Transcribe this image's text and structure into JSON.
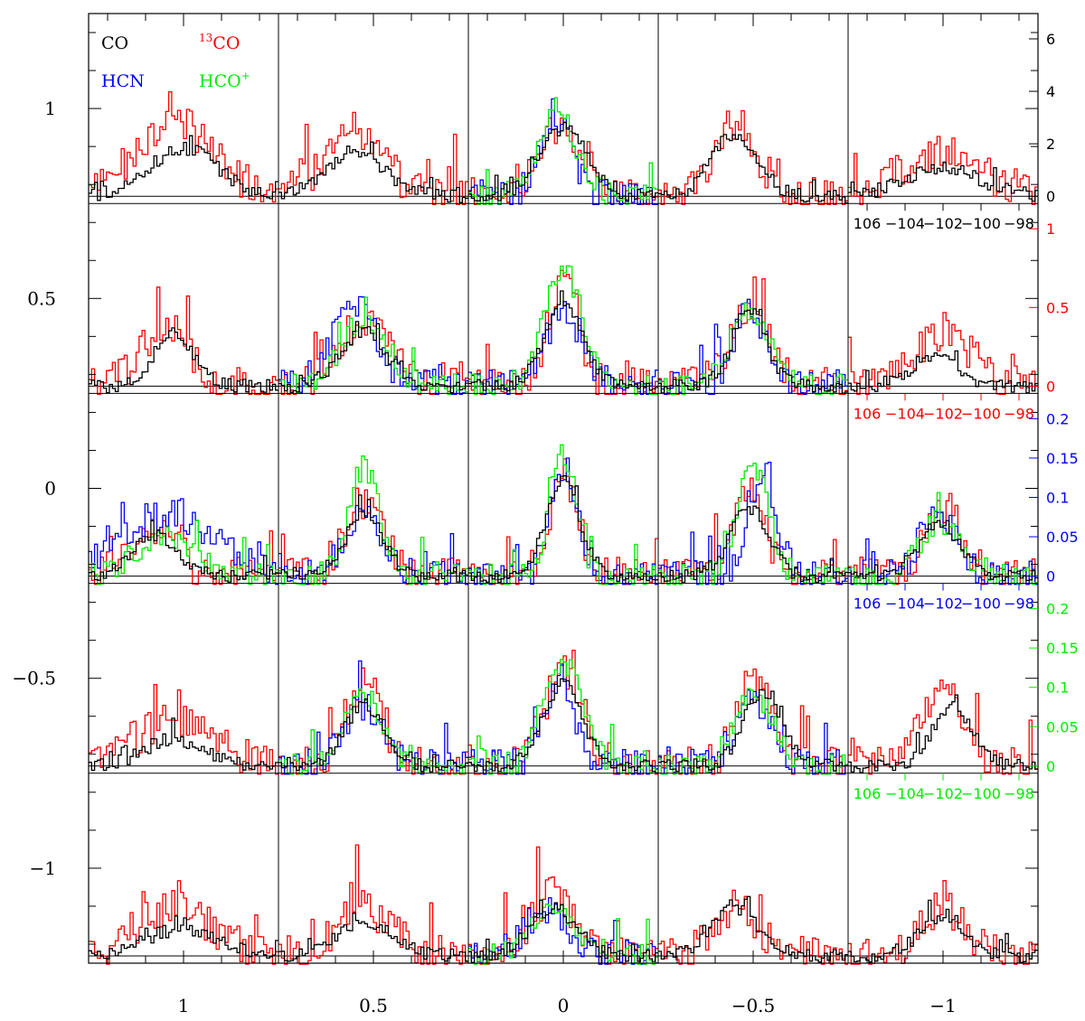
{
  "chart_data": {
    "type": "line",
    "subtype": "spectral line grid map (5x5 panels of step spectra)",
    "grid": {
      "rows": 5,
      "cols": 5
    },
    "x_axis": {
      "label": "",
      "ticks": [
        1,
        0.5,
        0,
        -0.5,
        -1
      ],
      "tick_labels": [
        "1",
        "0.5",
        "0",
        "−0.5",
        "−1"
      ],
      "range": [
        1.25,
        -1.25
      ]
    },
    "y_axis": {
      "label": "",
      "ticks": [
        1,
        0.5,
        0,
        -0.5,
        -1
      ],
      "tick_labels": [
        "1",
        "0.5",
        "0",
        "−0.5",
        "−1"
      ],
      "range": [
        -1.25,
        1.25
      ]
    },
    "panel_velocity_axis": {
      "range": [
        -107.5,
        -97.5
      ],
      "ticks": [
        -106,
        -104,
        -102,
        -100,
        -98
      ]
    },
    "legend": [
      {
        "text": "CO",
        "color": "#000000"
      },
      {
        "text": "¹³CO",
        "sup": "13",
        "base": "CO",
        "color": "#ff0000"
      },
      {
        "text": "HCN",
        "color": "#0000ff"
      },
      {
        "text": "HCO⁺",
        "base": "HCO",
        "sup": "+",
        "color": "#00ee00"
      }
    ],
    "intensity_scales": [
      {
        "series": "CO",
        "color": "#000000",
        "ticks": [
          "6",
          "4",
          "2",
          "0"
        ],
        "values": [
          6,
          4,
          2,
          0
        ],
        "velocity_labels": [
          "106",
          "−104",
          "−102",
          "−100",
          "−98"
        ]
      },
      {
        "series": "13CO",
        "color": "#ff0000",
        "ticks": [
          "1",
          "0.5",
          "0"
        ],
        "values": [
          1,
          0.5,
          0
        ],
        "velocity_labels": [
          "106",
          "−104",
          "−102",
          "−100",
          "−98"
        ]
      },
      {
        "series": "HCN",
        "color": "#0000ff",
        "ticks": [
          "0.2",
          "0.15",
          "0.1",
          "0.05",
          "0"
        ],
        "values": [
          0.2,
          0.15,
          0.1,
          0.05,
          0
        ],
        "velocity_labels": [
          "106",
          "−104",
          "−102",
          "−100",
          "−98"
        ]
      },
      {
        "series": "HCO+",
        "color": "#00ee00",
        "ticks": [
          "0.2",
          "0.15",
          "0.1",
          "0.05",
          "0"
        ],
        "values": [
          0.2,
          0.15,
          0.1,
          0.05,
          0
        ],
        "velocity_labels": [
          "106",
          "−104",
          "−102",
          "−100",
          "−98"
        ]
      }
    ],
    "series": [
      {
        "name": "CO",
        "color": "#000000",
        "peak_velocity_approx": -102
      },
      {
        "name": "13CO",
        "color": "#ff0000",
        "peak_velocity_approx": -102
      },
      {
        "name": "HCN",
        "color": "#0000ff",
        "peak_velocity_approx": -102
      },
      {
        "name": "HCO+",
        "color": "#00ee00",
        "peak_velocity_approx": -102
      }
    ],
    "panels": [
      {
        "row": 0,
        "col": 0,
        "spectra": {
          "CO": {
            "peak": 0.35,
            "center": 0.5,
            "width": 0.18
          },
          "13CO": {
            "peak": 0.55,
            "center": 0.45,
            "width": 0.2
          }
        }
      },
      {
        "row": 0,
        "col": 1,
        "spectra": {
          "CO": {
            "peak": 0.3,
            "center": 0.4,
            "width": 0.16
          },
          "13CO": {
            "peak": 0.5,
            "center": 0.4,
            "width": 0.15
          }
        }
      },
      {
        "row": 0,
        "col": 2,
        "spectra": {
          "CO": {
            "peak": 0.5,
            "center": 0.5,
            "width": 0.12
          },
          "13CO": {
            "peak": 0.5,
            "center": 0.5,
            "width": 0.12
          },
          "HCN": {
            "peak": 0.6,
            "center": 0.45,
            "width": 0.08
          },
          "HCO+": {
            "peak": 0.6,
            "center": 0.47,
            "width": 0.1
          }
        }
      },
      {
        "row": 0,
        "col": 3,
        "spectra": {
          "CO": {
            "peak": 0.45,
            "center": 0.4,
            "width": 0.12
          },
          "13CO": {
            "peak": 0.55,
            "center": 0.4,
            "width": 0.1
          }
        }
      },
      {
        "row": 0,
        "col": 4,
        "spectra": {
          "CO": {
            "peak": 0.2,
            "center": 0.5,
            "width": 0.2
          },
          "13CO": {
            "peak": 0.35,
            "center": 0.5,
            "width": 0.2
          }
        }
      },
      {
        "row": 1,
        "col": 0,
        "spectra": {
          "CO": {
            "peak": 0.4,
            "center": 0.45,
            "width": 0.1
          },
          "13CO": {
            "peak": 0.45,
            "center": 0.4,
            "width": 0.12
          }
        }
      },
      {
        "row": 1,
        "col": 1,
        "spectra": {
          "CO": {
            "peak": 0.4,
            "center": 0.45,
            "width": 0.12
          },
          "13CO": {
            "peak": 0.5,
            "center": 0.45,
            "width": 0.12
          },
          "HCN": {
            "peak": 0.6,
            "center": 0.4,
            "width": 0.12
          },
          "HCO+": {
            "peak": 0.5,
            "center": 0.45,
            "width": 0.12
          }
        }
      },
      {
        "row": 1,
        "col": 2,
        "spectra": {
          "CO": {
            "peak": 0.6,
            "center": 0.5,
            "width": 0.1
          },
          "13CO": {
            "peak": 0.8,
            "center": 0.5,
            "width": 0.08
          },
          "HCN": {
            "peak": 0.55,
            "center": 0.5,
            "width": 0.1
          },
          "HCO+": {
            "peak": 0.85,
            "center": 0.5,
            "width": 0.1
          }
        }
      },
      {
        "row": 1,
        "col": 3,
        "spectra": {
          "CO": {
            "peak": 0.55,
            "center": 0.48,
            "width": 0.09
          },
          "13CO": {
            "peak": 0.55,
            "center": 0.48,
            "width": 0.1
          },
          "HCN": {
            "peak": 0.6,
            "center": 0.48,
            "width": 0.08
          },
          "HCO+": {
            "peak": 0.55,
            "center": 0.48,
            "width": 0.1
          }
        }
      },
      {
        "row": 1,
        "col": 4,
        "spectra": {
          "CO": {
            "peak": 0.22,
            "center": 0.45,
            "width": 0.12
          },
          "13CO": {
            "peak": 0.4,
            "center": 0.5,
            "width": 0.15
          }
        }
      },
      {
        "row": 2,
        "col": 0,
        "spectra": {
          "CO": {
            "peak": 0.3,
            "center": 0.35,
            "width": 0.12
          },
          "13CO": {
            "peak": 0.35,
            "center": 0.35,
            "width": 0.12
          },
          "HCN": {
            "peak": 0.45,
            "center": 0.4,
            "width": 0.25
          },
          "HCO+": {
            "peak": 0.3,
            "center": 0.4,
            "width": 0.15
          }
        }
      },
      {
        "row": 2,
        "col": 1,
        "spectra": {
          "CO": {
            "peak": 0.45,
            "center": 0.45,
            "width": 0.1
          },
          "13CO": {
            "peak": 0.55,
            "center": 0.45,
            "width": 0.1
          },
          "HCN": {
            "peak": 0.5,
            "center": 0.45,
            "width": 0.1
          },
          "HCO+": {
            "peak": 0.8,
            "center": 0.45,
            "width": 0.08
          }
        }
      },
      {
        "row": 2,
        "col": 2,
        "spectra": {
          "CO": {
            "peak": 0.7,
            "center": 0.5,
            "width": 0.09
          },
          "13CO": {
            "peak": 0.7,
            "center": 0.5,
            "width": 0.08
          },
          "HCN": {
            "peak": 0.8,
            "center": 0.5,
            "width": 0.07
          },
          "HCO+": {
            "peak": 0.9,
            "center": 0.5,
            "width": 0.07
          }
        }
      },
      {
        "row": 2,
        "col": 3,
        "spectra": {
          "CO": {
            "peak": 0.5,
            "center": 0.48,
            "width": 0.1
          },
          "13CO": {
            "peak": 0.6,
            "center": 0.48,
            "width": 0.08
          },
          "HCN": {
            "peak": 0.75,
            "center": 0.55,
            "width": 0.07
          },
          "HCO+": {
            "peak": 0.8,
            "center": 0.5,
            "width": 0.08
          }
        }
      },
      {
        "row": 2,
        "col": 4,
        "spectra": {
          "CO": {
            "peak": 0.4,
            "center": 0.48,
            "width": 0.1
          },
          "13CO": {
            "peak": 0.45,
            "center": 0.5,
            "width": 0.1
          },
          "HCN": {
            "peak": 0.45,
            "center": 0.48,
            "width": 0.1
          },
          "HCO+": {
            "peak": 0.4,
            "center": 0.48,
            "width": 0.1
          }
        }
      },
      {
        "row": 3,
        "col": 0,
        "spectra": {
          "CO": {
            "peak": 0.2,
            "center": 0.45,
            "width": 0.15
          },
          "13CO": {
            "peak": 0.35,
            "center": 0.45,
            "width": 0.2
          }
        }
      },
      {
        "row": 3,
        "col": 1,
        "spectra": {
          "CO": {
            "peak": 0.45,
            "center": 0.45,
            "width": 0.1
          },
          "13CO": {
            "peak": 0.6,
            "center": 0.45,
            "width": 0.1
          },
          "HCN": {
            "peak": 0.45,
            "center": 0.45,
            "width": 0.1
          },
          "HCO+": {
            "peak": 0.5,
            "center": 0.45,
            "width": 0.1
          }
        }
      },
      {
        "row": 3,
        "col": 2,
        "spectra": {
          "CO": {
            "peak": 0.6,
            "center": 0.5,
            "width": 0.1
          },
          "13CO": {
            "peak": 0.7,
            "center": 0.5,
            "width": 0.1
          },
          "HCN": {
            "peak": 0.65,
            "center": 0.48,
            "width": 0.08
          },
          "HCO+": {
            "peak": 0.75,
            "center": 0.5,
            "width": 0.1
          }
        }
      },
      {
        "row": 3,
        "col": 3,
        "spectra": {
          "CO": {
            "peak": 0.55,
            "center": 0.55,
            "width": 0.1
          },
          "13CO": {
            "peak": 0.65,
            "center": 0.5,
            "width": 0.09
          },
          "HCN": {
            "peak": 0.45,
            "center": 0.5,
            "width": 0.1
          },
          "HCO+": {
            "peak": 0.55,
            "center": 0.5,
            "width": 0.1
          }
        }
      },
      {
        "row": 3,
        "col": 4,
        "spectra": {
          "CO": {
            "peak": 0.45,
            "center": 0.55,
            "width": 0.1
          },
          "13CO": {
            "peak": 0.55,
            "center": 0.5,
            "width": 0.12
          }
        }
      },
      {
        "row": 4,
        "col": 0,
        "spectra": {
          "CO": {
            "peak": 0.2,
            "center": 0.5,
            "width": 0.2
          },
          "13CO": {
            "peak": 0.35,
            "center": 0.45,
            "width": 0.2
          }
        }
      },
      {
        "row": 4,
        "col": 1,
        "spectra": {
          "CO": {
            "peak": 0.25,
            "center": 0.45,
            "width": 0.15
          },
          "13CO": {
            "peak": 0.35,
            "center": 0.45,
            "width": 0.15
          }
        }
      },
      {
        "row": 4,
        "col": 2,
        "spectra": {
          "CO": {
            "peak": 0.35,
            "center": 0.45,
            "width": 0.12
          },
          "13CO": {
            "peak": 0.45,
            "center": 0.45,
            "width": 0.12
          },
          "HCN": {
            "peak": 0.35,
            "center": 0.4,
            "width": 0.1
          },
          "HCO+": {
            "peak": 0.35,
            "center": 0.45,
            "width": 0.12
          }
        }
      },
      {
        "row": 4,
        "col": 3,
        "spectra": {
          "CO": {
            "peak": 0.35,
            "center": 0.4,
            "width": 0.12
          },
          "13CO": {
            "peak": 0.35,
            "center": 0.4,
            "width": 0.12
          }
        }
      },
      {
        "row": 4,
        "col": 4,
        "spectra": {
          "CO": {
            "peak": 0.3,
            "center": 0.5,
            "width": 0.12
          },
          "13CO": {
            "peak": 0.35,
            "center": 0.5,
            "width": 0.12
          }
        }
      }
    ],
    "grid_lines": true,
    "legend_position": "top-left"
  }
}
